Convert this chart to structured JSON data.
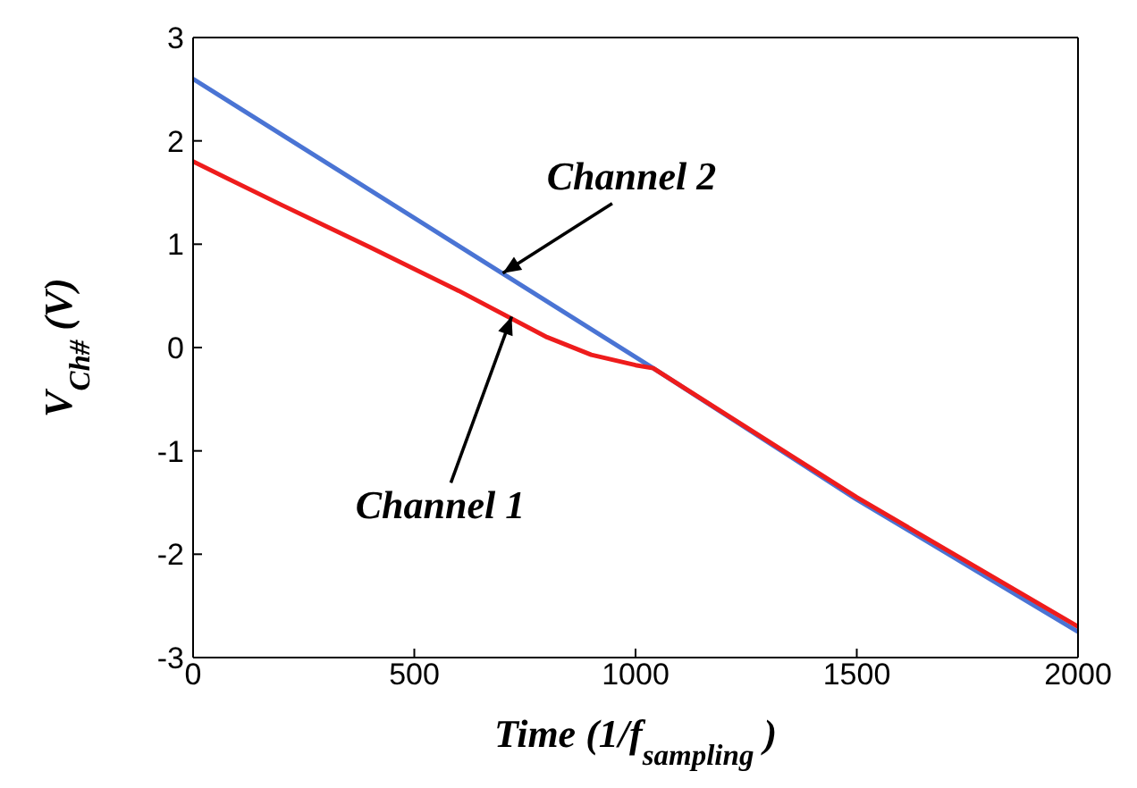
{
  "chart_data": {
    "type": "line",
    "xlabel": "Time (1/f$_{sampling}$)",
    "ylabel": "V$_{Ch#}$ (V)",
    "xlim": [
      0,
      2000
    ],
    "xticks": [
      0,
      500,
      1000,
      1500,
      2000
    ],
    "ylim": [
      -3,
      3
    ],
    "yticks": [
      -3,
      -2,
      -1,
      0,
      1,
      2,
      3
    ],
    "legend": false,
    "marker": "none",
    "line_style": "solid",
    "series": [
      {
        "color": "#4a74d4",
        "x": [
          0,
          1040,
          1500,
          2000
        ],
        "values": [
          2.6,
          -0.2,
          -1.47,
          -2.75
        ]
      },
      {
        "color": "#ee1c1c",
        "x": [
          0,
          200,
          400,
          600,
          800,
          900,
          1000,
          1040,
          1500,
          2000
        ],
        "values": [
          1.8,
          1.38,
          0.97,
          0.55,
          0.1,
          -0.07,
          -0.17,
          -0.2,
          -1.45,
          -2.7
        ]
      }
    ],
    "annotations": [
      {
        "text": "Channel 2",
        "x": 700,
        "y": 0.72
      },
      {
        "text": "Channel 1",
        "x": 720,
        "y": 0.3
      }
    ]
  }
}
